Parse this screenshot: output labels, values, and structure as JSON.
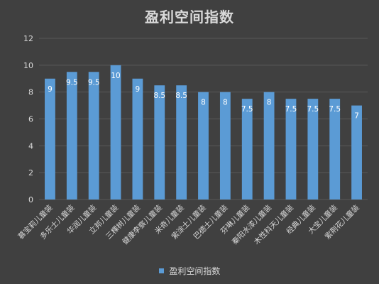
{
  "chart_data": {
    "type": "bar",
    "title": "盈利空间指数",
    "categories": [
      "慕宝莉儿童装",
      "多乐士儿童装",
      "华润儿童装",
      "立邦儿童装",
      "三棵树儿童装",
      "健康李察儿童装",
      "米奇儿童装",
      "紫涂士儿童装",
      "巴德士儿童装",
      "芬琳儿童装",
      "秦阳水漆儿童装",
      "木性科天儿童装",
      "经典儿童装",
      "大宝儿童装",
      "紫荆花儿童装"
    ],
    "series": [
      {
        "name": "盈利空间指数",
        "values": [
          9,
          9.5,
          9.5,
          10,
          9,
          8.5,
          8.5,
          8,
          8,
          7.5,
          8,
          7.5,
          7.5,
          7.5,
          7
        ]
      }
    ],
    "data_labels": [
      "9",
      "9.5",
      "9.5",
      "10",
      "9",
      "8.5",
      "8.5",
      "8",
      "8",
      "7.5",
      "8",
      "7.5",
      "7.5",
      "7.5",
      "7"
    ],
    "yticks": [
      "0",
      "2",
      "4",
      "6",
      "8",
      "10",
      "12"
    ],
    "ylim": [
      0,
      12
    ],
    "grid": true,
    "legend_position": "bottom",
    "colors": {
      "bar": "#5b9bd5",
      "background": "#404040",
      "grid": "#595959",
      "text": "#d9d9d9"
    }
  }
}
